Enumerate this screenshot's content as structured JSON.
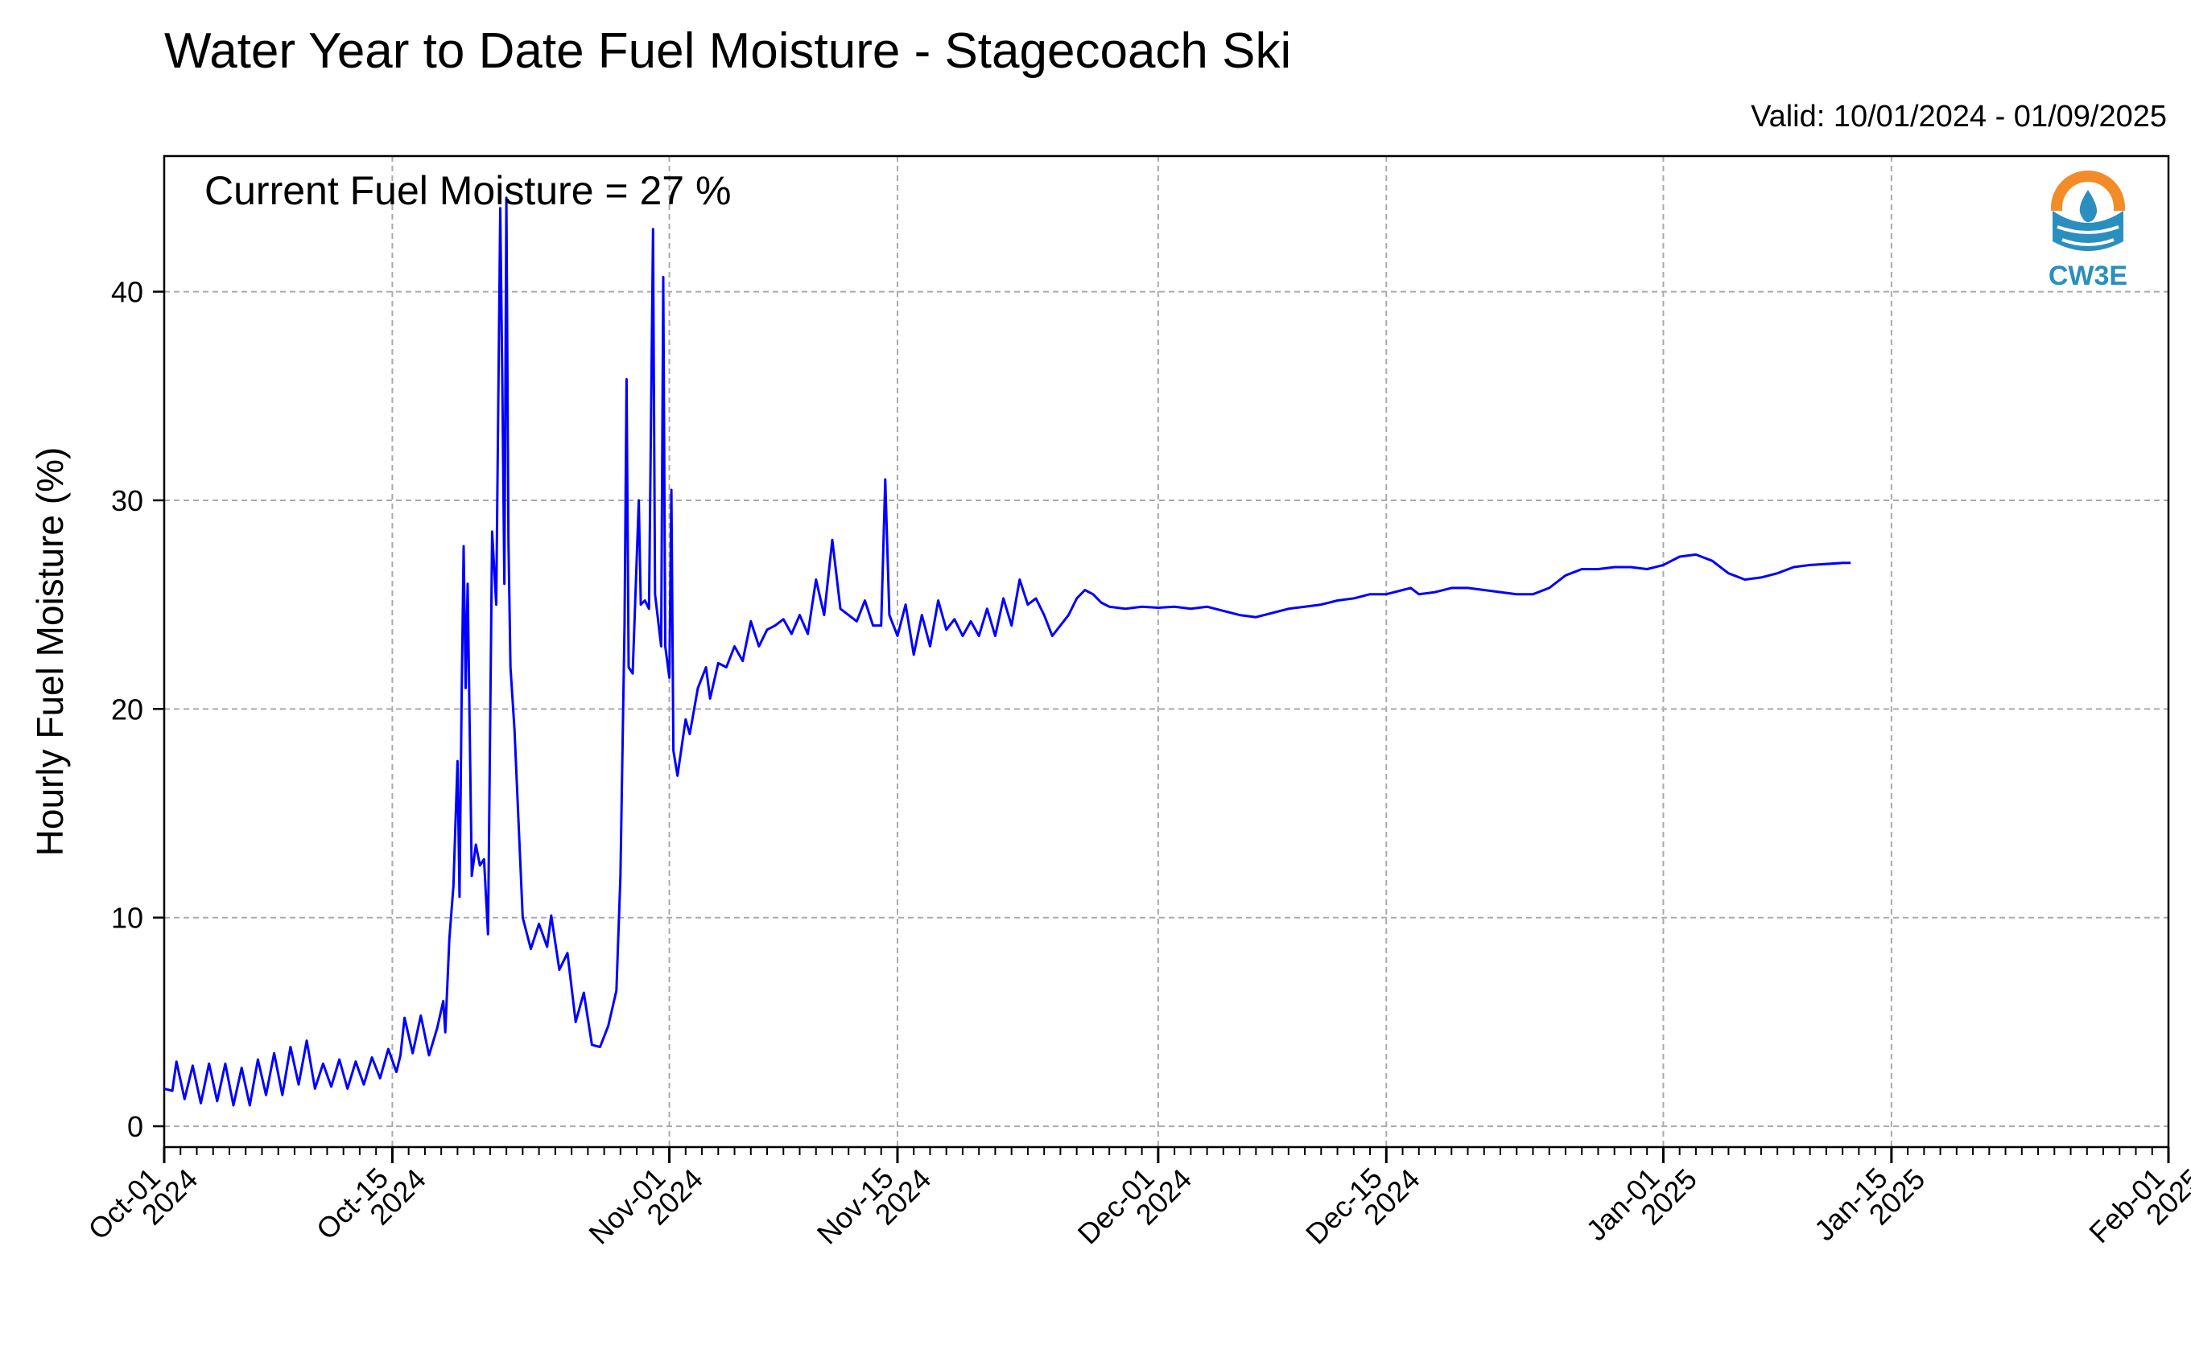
{
  "title": "Water Year to Date Fuel Moisture - Stagecoach Ski",
  "valid_text": "Valid: 10/01/2024 - 01/09/2025",
  "logo": {
    "text": "CW3E",
    "icon": "cw3e-logo-icon",
    "colors": {
      "orange": "#f28c28",
      "blue": "#2a8fbf"
    }
  },
  "chart_data": {
    "type": "line",
    "title": "Water Year to Date Fuel Moisture - Stagecoach Ski",
    "ylabel": "Hourly Fuel Moisture (%)",
    "xlabel": "",
    "annotation": "Current Fuel Moisture = 27 %",
    "xlim": [
      "2024-10-01",
      "2025-02-01"
    ],
    "ylim": [
      -1,
      46.5
    ],
    "grid": true,
    "line_color": "#0000ff",
    "yticks": [
      0,
      10,
      20,
      30,
      40
    ],
    "xticks": [
      {
        "date": "2024-10-01",
        "label": [
          "Oct-01",
          "2024"
        ]
      },
      {
        "date": "2024-10-15",
        "label": [
          "Oct-15",
          "2024"
        ]
      },
      {
        "date": "2024-11-01",
        "label": [
          "Nov-01",
          "2024"
        ]
      },
      {
        "date": "2024-11-15",
        "label": [
          "Nov-15",
          "2024"
        ]
      },
      {
        "date": "2024-12-01",
        "label": [
          "Dec-01",
          "2024"
        ]
      },
      {
        "date": "2024-12-15",
        "label": [
          "Dec-15",
          "2024"
        ]
      },
      {
        "date": "2025-01-01",
        "label": [
          "Jan-01",
          "2025"
        ]
      },
      {
        "date": "2025-01-15",
        "label": [
          "Jan-15",
          "2025"
        ]
      },
      {
        "date": "2025-02-01",
        "label": [
          "Feb-01",
          "2025"
        ]
      }
    ],
    "series": [
      {
        "points": [
          [
            "2024-10-01 00:00",
            1.8
          ],
          [
            "2024-10-01 12:00",
            1.7
          ],
          [
            "2024-10-01 18:00",
            3.1
          ],
          [
            "2024-10-02 06:00",
            1.3
          ],
          [
            "2024-10-02 18:00",
            2.9
          ],
          [
            "2024-10-03 06:00",
            1.1
          ],
          [
            "2024-10-03 18:00",
            3.0
          ],
          [
            "2024-10-04 06:00",
            1.2
          ],
          [
            "2024-10-04 18:00",
            3.0
          ],
          [
            "2024-10-05 06:00",
            1.0
          ],
          [
            "2024-10-05 18:00",
            2.8
          ],
          [
            "2024-10-06 06:00",
            1.0
          ],
          [
            "2024-10-06 18:00",
            3.2
          ],
          [
            "2024-10-07 06:00",
            1.5
          ],
          [
            "2024-10-07 18:00",
            3.5
          ],
          [
            "2024-10-08 06:00",
            1.5
          ],
          [
            "2024-10-08 18:00",
            3.8
          ],
          [
            "2024-10-09 06:00",
            2.0
          ],
          [
            "2024-10-09 18:00",
            4.1
          ],
          [
            "2024-10-10 06:00",
            1.8
          ],
          [
            "2024-10-10 18:00",
            3.0
          ],
          [
            "2024-10-11 06:00",
            1.9
          ],
          [
            "2024-10-11 18:00",
            3.2
          ],
          [
            "2024-10-12 06:00",
            1.8
          ],
          [
            "2024-10-12 18:00",
            3.1
          ],
          [
            "2024-10-13 06:00",
            2.0
          ],
          [
            "2024-10-13 18:00",
            3.3
          ],
          [
            "2024-10-14 06:00",
            2.3
          ],
          [
            "2024-10-14 18:00",
            3.7
          ],
          [
            "2024-10-15 06:00",
            2.6
          ],
          [
            "2024-10-15 12:00",
            3.4
          ],
          [
            "2024-10-15 18:00",
            5.2
          ],
          [
            "2024-10-16 06:00",
            3.5
          ],
          [
            "2024-10-16 18:00",
            5.3
          ],
          [
            "2024-10-17 06:00",
            3.4
          ],
          [
            "2024-10-17 18:00",
            4.7
          ],
          [
            "2024-10-18 03:00",
            6.0
          ],
          [
            "2024-10-18 06:00",
            4.5
          ],
          [
            "2024-10-18 12:00",
            9.0
          ],
          [
            "2024-10-18 18:00",
            11.5
          ],
          [
            "2024-10-19 00:00",
            17.5
          ],
          [
            "2024-10-19 03:00",
            11.0
          ],
          [
            "2024-10-19 06:00",
            20.5
          ],
          [
            "2024-10-19 09:00",
            27.8
          ],
          [
            "2024-10-19 12:00",
            21.0
          ],
          [
            "2024-10-19 15:00",
            26.0
          ],
          [
            "2024-10-19 21:00",
            12.0
          ],
          [
            "2024-10-20 03:00",
            13.5
          ],
          [
            "2024-10-20 09:00",
            12.5
          ],
          [
            "2024-10-20 15:00",
            12.8
          ],
          [
            "2024-10-20 21:00",
            9.2
          ],
          [
            "2024-10-21 03:00",
            28.5
          ],
          [
            "2024-10-21 09:00",
            25.0
          ],
          [
            "2024-10-21 15:00",
            44.0
          ],
          [
            "2024-10-21 18:00",
            35.5
          ],
          [
            "2024-10-21 21:00",
            26.0
          ],
          [
            "2024-10-22 00:00",
            44.5
          ],
          [
            "2024-10-22 03:00",
            28.0
          ],
          [
            "2024-10-22 06:00",
            22.0
          ],
          [
            "2024-10-22 12:00",
            19.0
          ],
          [
            "2024-10-23 00:00",
            10.0
          ],
          [
            "2024-10-23 12:00",
            8.5
          ],
          [
            "2024-10-24 00:00",
            9.7
          ],
          [
            "2024-10-24 12:00",
            8.6
          ],
          [
            "2024-10-24 18:00",
            10.1
          ],
          [
            "2024-10-25 06:00",
            7.5
          ],
          [
            "2024-10-25 18:00",
            8.3
          ],
          [
            "2024-10-26 06:00",
            5.0
          ],
          [
            "2024-10-26 18:00",
            6.4
          ],
          [
            "2024-10-27 06:00",
            3.9
          ],
          [
            "2024-10-27 18:00",
            3.8
          ],
          [
            "2024-10-28 06:00",
            4.8
          ],
          [
            "2024-10-28 18:00",
            6.5
          ],
          [
            "2024-10-29 00:00",
            12.0
          ],
          [
            "2024-10-29 06:00",
            24.0
          ],
          [
            "2024-10-29 09:00",
            35.8
          ],
          [
            "2024-10-29 12:00",
            22.0
          ],
          [
            "2024-10-29 18:00",
            21.7
          ],
          [
            "2024-10-30 03:00",
            30.0
          ],
          [
            "2024-10-30 06:00",
            25.0
          ],
          [
            "2024-10-30 12:00",
            25.2
          ],
          [
            "2024-10-30 18:00",
            24.8
          ],
          [
            "2024-10-31 00:00",
            43.0
          ],
          [
            "2024-10-31 03:00",
            25.5
          ],
          [
            "2024-10-31 12:00",
            23.0
          ],
          [
            "2024-10-31 15:00",
            40.7
          ],
          [
            "2024-10-31 18:00",
            23.0
          ],
          [
            "2024-11-01 00:00",
            21.5
          ],
          [
            "2024-11-01 03:00",
            30.5
          ],
          [
            "2024-11-01 06:00",
            18.0
          ],
          [
            "2024-11-01 12:00",
            16.8
          ],
          [
            "2024-11-02 00:00",
            19.5
          ],
          [
            "2024-11-02 06:00",
            18.8
          ],
          [
            "2024-11-02 18:00",
            21.0
          ],
          [
            "2024-11-03 06:00",
            22.0
          ],
          [
            "2024-11-03 12:00",
            20.5
          ],
          [
            "2024-11-04 00:00",
            22.2
          ],
          [
            "2024-11-04 12:00",
            22.0
          ],
          [
            "2024-11-05 00:00",
            23.0
          ],
          [
            "2024-11-05 12:00",
            22.3
          ],
          [
            "2024-11-06 00:00",
            24.2
          ],
          [
            "2024-11-06 12:00",
            23.0
          ],
          [
            "2024-11-07 00:00",
            23.8
          ],
          [
            "2024-11-07 12:00",
            24.0
          ],
          [
            "2024-11-08 00:00",
            24.3
          ],
          [
            "2024-11-08 12:00",
            23.6
          ],
          [
            "2024-11-09 00:00",
            24.5
          ],
          [
            "2024-11-09 12:00",
            23.6
          ],
          [
            "2024-11-10 00:00",
            26.2
          ],
          [
            "2024-11-10 12:00",
            24.5
          ],
          [
            "2024-11-11 00:00",
            28.1
          ],
          [
            "2024-11-11 12:00",
            24.8
          ],
          [
            "2024-11-12 00:00",
            24.5
          ],
          [
            "2024-11-12 12:00",
            24.2
          ],
          [
            "2024-11-13 00:00",
            25.2
          ],
          [
            "2024-11-13 12:00",
            24.0
          ],
          [
            "2024-11-14 00:00",
            24.0
          ],
          [
            "2024-11-14 06:00",
            31.0
          ],
          [
            "2024-11-14 12:00",
            24.5
          ],
          [
            "2024-11-15 00:00",
            23.5
          ],
          [
            "2024-11-15 12:00",
            25.0
          ],
          [
            "2024-11-16 00:00",
            22.6
          ],
          [
            "2024-11-16 12:00",
            24.5
          ],
          [
            "2024-11-17 00:00",
            23.0
          ],
          [
            "2024-11-17 12:00",
            25.2
          ],
          [
            "2024-11-18 00:00",
            23.8
          ],
          [
            "2024-11-18 12:00",
            24.3
          ],
          [
            "2024-11-19 00:00",
            23.5
          ],
          [
            "2024-11-19 12:00",
            24.2
          ],
          [
            "2024-11-20 00:00",
            23.5
          ],
          [
            "2024-11-20 12:00",
            24.8
          ],
          [
            "2024-11-21 00:00",
            23.5
          ],
          [
            "2024-11-21 12:00",
            25.3
          ],
          [
            "2024-11-22 00:00",
            24.0
          ],
          [
            "2024-11-22 12:00",
            26.2
          ],
          [
            "2024-11-23 00:00",
            25.0
          ],
          [
            "2024-11-23 12:00",
            25.3
          ],
          [
            "2024-11-24 00:00",
            24.5
          ],
          [
            "2024-11-24 12:00",
            23.5
          ],
          [
            "2024-11-25 00:00",
            24.0
          ],
          [
            "2024-11-25 12:00",
            24.5
          ],
          [
            "2024-11-26 00:00",
            25.3
          ],
          [
            "2024-11-26 12:00",
            25.7
          ],
          [
            "2024-11-27 00:00",
            25.5
          ],
          [
            "2024-11-27 12:00",
            25.1
          ],
          [
            "2024-11-28 00:00",
            24.9
          ],
          [
            "2024-11-29 00:00",
            24.8
          ],
          [
            "2024-11-30 00:00",
            24.9
          ],
          [
            "2024-12-01 00:00",
            24.85
          ],
          [
            "2024-12-02 00:00",
            24.9
          ],
          [
            "2024-12-03 00:00",
            24.8
          ],
          [
            "2024-12-04 00:00",
            24.9
          ],
          [
            "2024-12-05 00:00",
            24.7
          ],
          [
            "2024-12-06 00:00",
            24.5
          ],
          [
            "2024-12-07 00:00",
            24.4
          ],
          [
            "2024-12-08 00:00",
            24.6
          ],
          [
            "2024-12-09 00:00",
            24.8
          ],
          [
            "2024-12-10 00:00",
            24.9
          ],
          [
            "2024-12-11 00:00",
            25.0
          ],
          [
            "2024-12-12 00:00",
            25.2
          ],
          [
            "2024-12-13 00:00",
            25.3
          ],
          [
            "2024-12-14 00:00",
            25.5
          ],
          [
            "2024-12-15 00:00",
            25.5
          ],
          [
            "2024-12-16 00:00",
            25.7
          ],
          [
            "2024-12-16 12:00",
            25.8
          ],
          [
            "2024-12-17 00:00",
            25.5
          ],
          [
            "2024-12-18 00:00",
            25.6
          ],
          [
            "2024-12-19 00:00",
            25.8
          ],
          [
            "2024-12-20 00:00",
            25.8
          ],
          [
            "2024-12-21 00:00",
            25.7
          ],
          [
            "2024-12-22 00:00",
            25.6
          ],
          [
            "2024-12-23 00:00",
            25.5
          ],
          [
            "2024-12-24 00:00",
            25.5
          ],
          [
            "2024-12-25 00:00",
            25.8
          ],
          [
            "2024-12-26 00:00",
            26.4
          ],
          [
            "2024-12-27 00:00",
            26.7
          ],
          [
            "2024-12-28 00:00",
            26.7
          ],
          [
            "2024-12-29 00:00",
            26.8
          ],
          [
            "2024-12-30 00:00",
            26.8
          ],
          [
            "2024-12-31 00:00",
            26.7
          ],
          [
            "2025-01-01 00:00",
            26.9
          ],
          [
            "2025-01-02 00:00",
            27.3
          ],
          [
            "2025-01-03 00:00",
            27.4
          ],
          [
            "2025-01-04 00:00",
            27.1
          ],
          [
            "2025-01-05 00:00",
            26.5
          ],
          [
            "2025-01-06 00:00",
            26.2
          ],
          [
            "2025-01-07 00:00",
            26.3
          ],
          [
            "2025-01-08 00:00",
            26.5
          ],
          [
            "2025-01-09 00:00",
            26.8
          ],
          [
            "2025-01-10 00:00",
            26.9
          ],
          [
            "2025-01-11 00:00",
            26.95
          ],
          [
            "2025-01-12 00:00",
            27.0
          ],
          [
            "2025-01-12 12:00",
            27.0
          ]
        ]
      }
    ]
  }
}
